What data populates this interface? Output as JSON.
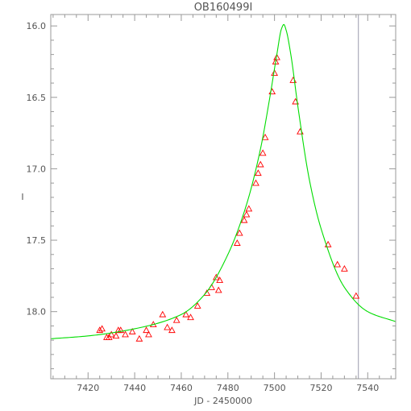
{
  "chart_data": {
    "type": "scatter",
    "title": "OB160499I",
    "xlabel": "JD - 2450000",
    "ylabel": "I",
    "xlim": [
      7404,
      7552
    ],
    "ylim": [
      18.47,
      15.92
    ],
    "y_inverted": true,
    "grid": false,
    "legend": "none",
    "x_ticks": [
      7420,
      7440,
      7460,
      7480,
      7500,
      7520,
      7540
    ],
    "y_ticks": [
      16.0,
      16.5,
      17.0,
      17.5,
      18.0
    ],
    "y_tick_labels": [
      "16.0",
      "16.5",
      "17.0",
      "17.5",
      "18.0"
    ],
    "vertical_line_x": 7536,
    "colors": {
      "axes": "#999999",
      "model": "#00dd00",
      "points": "#ff0000",
      "vline": "#9999aa"
    },
    "model_fit": {
      "style": "line",
      "x": [
        7404,
        7420,
        7440,
        7460,
        7470,
        7480,
        7488,
        7494,
        7498,
        7501,
        7503,
        7504,
        7505,
        7507,
        7510,
        7515,
        7520,
        7530,
        7540,
        7552
      ],
      "y": [
        18.19,
        18.17,
        18.12,
        18.02,
        17.88,
        17.6,
        17.25,
        16.86,
        16.5,
        16.2,
        16.02,
        15.99,
        16.03,
        16.2,
        16.56,
        17.08,
        17.42,
        17.83,
        18.0,
        18.07
      ]
    },
    "observations": {
      "marker": "triangle",
      "x": [
        7425,
        7426,
        7428,
        7429,
        7430,
        7432,
        7433,
        7434,
        7436,
        7439,
        7442,
        7445,
        7446,
        7448,
        7452,
        7454,
        7456,
        7458,
        7462,
        7464,
        7467,
        7471,
        7473,
        7475,
        7476,
        7476.5,
        7484,
        7485,
        7487,
        7488,
        7489,
        7492,
        7493,
        7494,
        7495,
        7496,
        7499,
        7500,
        7500.5,
        7501,
        7508,
        7509,
        7511,
        7523,
        7527,
        7530,
        7535
      ],
      "y": [
        18.13,
        18.12,
        18.18,
        18.18,
        18.16,
        18.17,
        18.13,
        18.13,
        18.16,
        18.14,
        18.19,
        18.13,
        18.16,
        18.09,
        18.02,
        18.11,
        18.13,
        18.06,
        18.02,
        18.04,
        17.96,
        17.87,
        17.83,
        17.76,
        17.85,
        17.78,
        17.52,
        17.45,
        17.36,
        17.32,
        17.28,
        17.1,
        17.03,
        16.97,
        16.89,
        16.78,
        16.46,
        16.33,
        16.25,
        16.22,
        16.38,
        16.53,
        16.74,
        17.53,
        17.67,
        17.7,
        17.89
      ]
    }
  }
}
